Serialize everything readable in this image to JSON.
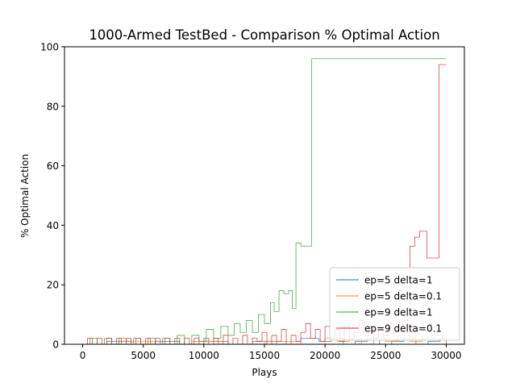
{
  "chart_data": {
    "type": "line",
    "title": "1000-Armed TestBed - Comparison % Optimal Action",
    "xlabel": "Plays",
    "ylabel": "% Optimal Action",
    "xlim": [
      -1500,
      31500
    ],
    "ylim": [
      0,
      100
    ],
    "xticks": [
      0,
      5000,
      10000,
      15000,
      20000,
      25000,
      30000
    ],
    "xtick_labels": [
      "0",
      "5000",
      "10000",
      "15000",
      "20000",
      "25000",
      "30000"
    ],
    "yticks": [
      0,
      20,
      40,
      60,
      80,
      100
    ],
    "ytick_labels": [
      "0",
      "20",
      "40",
      "60",
      "80",
      "100"
    ],
    "grid": false,
    "legend_position": "lower-right",
    "series": [
      {
        "name": "ep=5 delta=1",
        "color": "#1f77b4",
        "step": true,
        "x": [
          0,
          2000,
          4000,
          6000,
          8000,
          10000,
          12000,
          14000,
          16000,
          18000,
          19500,
          20500,
          21500,
          22500,
          23500,
          24500,
          25500,
          26500,
          27500,
          28500,
          29500,
          30000
        ],
        "y": [
          0,
          1,
          0,
          1,
          0,
          1,
          0,
          1,
          0,
          2,
          1,
          2,
          0,
          1,
          2,
          0,
          1,
          2,
          0,
          1,
          2,
          0
        ]
      },
      {
        "name": "ep=5 delta=0.1",
        "color": "#ff7f0e",
        "step": true,
        "x": [
          0,
          3000,
          6000,
          9000,
          12000,
          15000,
          18000,
          20000,
          21000,
          22000,
          23000,
          24000,
          25000,
          26000,
          27000,
          28000,
          29000,
          30000
        ],
        "y": [
          0,
          1,
          0,
          1,
          0,
          1,
          0,
          2,
          1,
          2,
          0,
          2,
          1,
          3,
          1,
          2,
          3,
          0
        ]
      },
      {
        "name": "ep=9 delta=1",
        "color": "#2ca02c",
        "step": true,
        "x": [
          0,
          600,
          1200,
          1800,
          2400,
          3000,
          3600,
          4200,
          4800,
          5400,
          6000,
          6600,
          7200,
          7800,
          8400,
          9000,
          9600,
          10200,
          10800,
          11400,
          12000,
          12500,
          13000,
          13500,
          14000,
          14500,
          15000,
          15500,
          15800,
          16200,
          16600,
          17000,
          17300,
          17600,
          18000,
          18500,
          18900,
          20000,
          30000
        ],
        "y": [
          0,
          2,
          0,
          2,
          0,
          2,
          0,
          2,
          0,
          2,
          0,
          2,
          0,
          3,
          0,
          3,
          1,
          5,
          2,
          6,
          3,
          7,
          4,
          8,
          4,
          10,
          7,
          14,
          11,
          18,
          17,
          18,
          12,
          34,
          33,
          33,
          96,
          96,
          96
        ]
      },
      {
        "name": "ep=9 delta=0.1",
        "color": "#d62728",
        "step": true,
        "x": [
          0,
          400,
          800,
          1200,
          1600,
          2000,
          2400,
          2800,
          3200,
          3600,
          4000,
          4400,
          4800,
          5200,
          5600,
          6000,
          6400,
          6800,
          7200,
          7600,
          8000,
          8400,
          8800,
          9200,
          9600,
          10000,
          10400,
          10800,
          11200,
          11600,
          12000,
          12400,
          12800,
          13200,
          13600,
          14000,
          14400,
          14800,
          15200,
          15600,
          16000,
          16400,
          16800,
          17200,
          17600,
          18000,
          18400,
          18800,
          19200,
          19600,
          20000,
          20400,
          20800,
          21200,
          21600,
          22000,
          22400,
          22800,
          23200,
          23600,
          24000,
          24400,
          24800,
          25200,
          25600,
          26000,
          26400,
          26800,
          27000,
          27400,
          27800,
          28400,
          28800,
          29400,
          29600,
          30000
        ],
        "y": [
          0,
          2,
          0,
          2,
          0,
          2,
          0,
          2,
          0,
          2,
          0,
          2,
          0,
          2,
          0,
          2,
          0,
          2,
          0,
          2,
          0,
          2,
          0,
          2,
          0,
          2,
          0,
          2,
          0,
          3,
          0,
          2,
          0,
          3,
          0,
          2,
          1,
          4,
          0,
          3,
          1,
          5,
          0,
          3,
          1,
          4,
          7,
          2,
          5,
          1,
          6,
          2,
          5,
          1,
          6,
          2,
          4,
          8,
          3,
          6,
          2,
          5,
          3,
          7,
          4,
          6,
          8,
          10,
          33,
          36,
          38,
          29,
          29,
          94,
          94,
          94
        ]
      }
    ]
  }
}
